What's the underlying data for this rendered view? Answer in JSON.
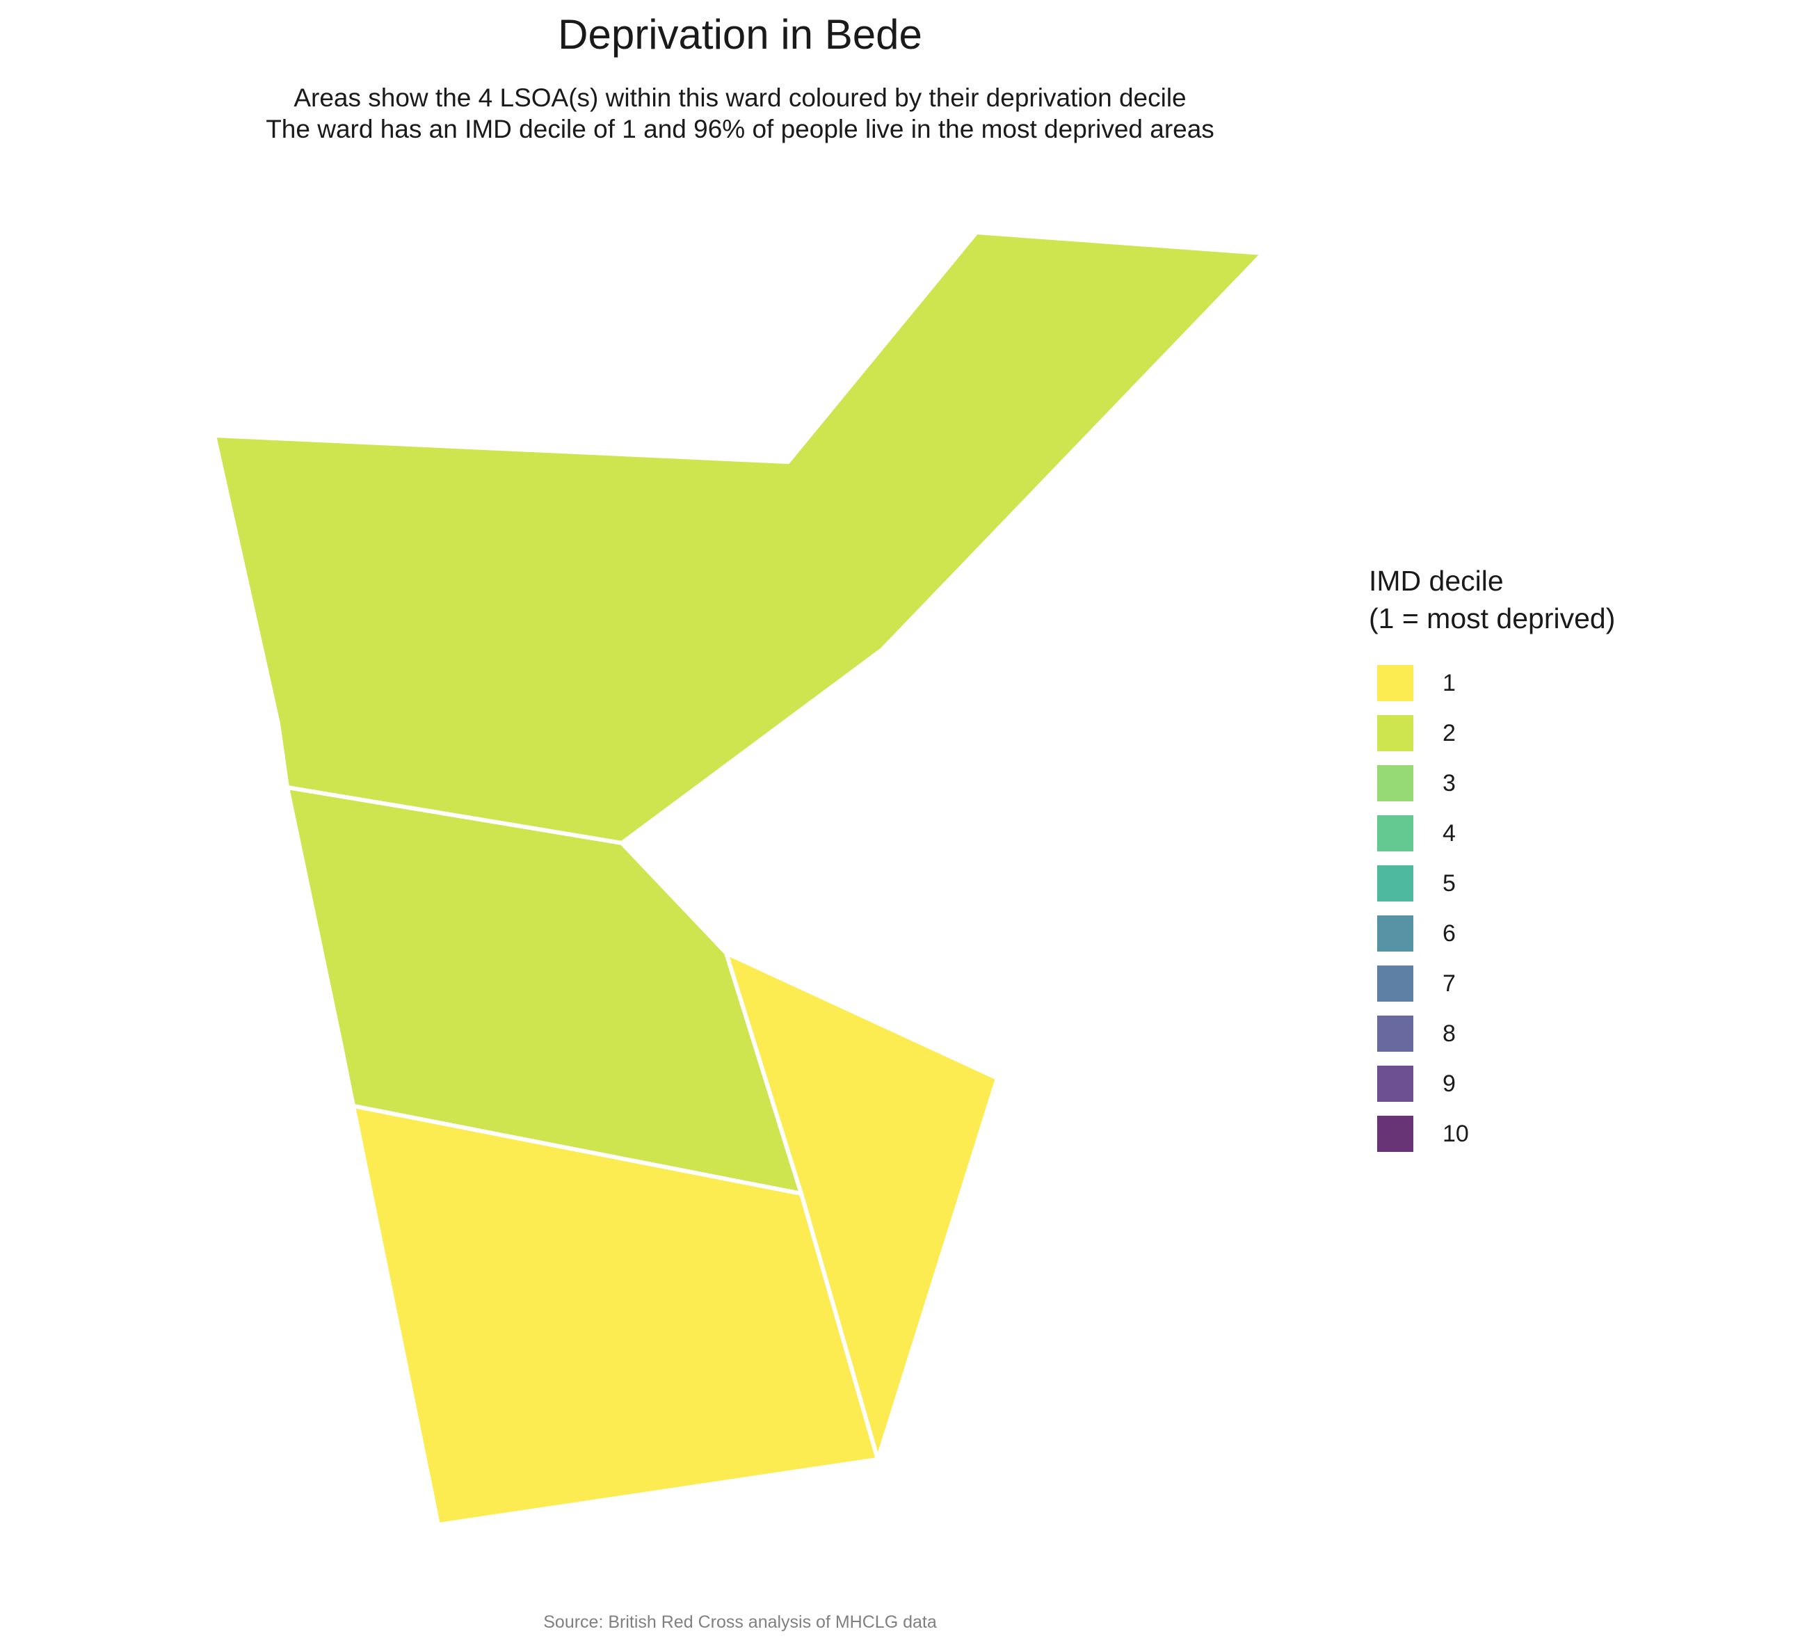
{
  "title": "Deprivation in Bede",
  "subtitle": {
    "line1": "Areas show the 4 LSOA(s) within this ward coloured by their deprivation decile",
    "line2": "The ward has an IMD decile of 1 and 96% of people live in the most deprived areas"
  },
  "legend": {
    "title_line1": "IMD decile",
    "title_line2": "(1 = most deprived)",
    "items": [
      {
        "label": "1",
        "color": "#FDE725"
      },
      {
        "label": "2",
        "color": "#C2DF23"
      },
      {
        "label": "3",
        "color": "#7AD151"
      },
      {
        "label": "4",
        "color": "#3CBB75"
      },
      {
        "label": "5",
        "color": "#22A884"
      },
      {
        "label": "6",
        "color": "#2A788E"
      },
      {
        "label": "7",
        "color": "#35608D"
      },
      {
        "label": "8",
        "color": "#414487"
      },
      {
        "label": "9",
        "color": "#482475"
      },
      {
        "label": "10",
        "color": "#440154"
      }
    ]
  },
  "areas": [
    {
      "name": "lsoa-north",
      "decile": 2
    },
    {
      "name": "lsoa-middle",
      "decile": 2
    },
    {
      "name": "lsoa-southwest",
      "decile": 1
    },
    {
      "name": "lsoa-southeast",
      "decile": 1
    }
  ],
  "caption": "Source: British Red Cross analysis of MHCLG data"
}
